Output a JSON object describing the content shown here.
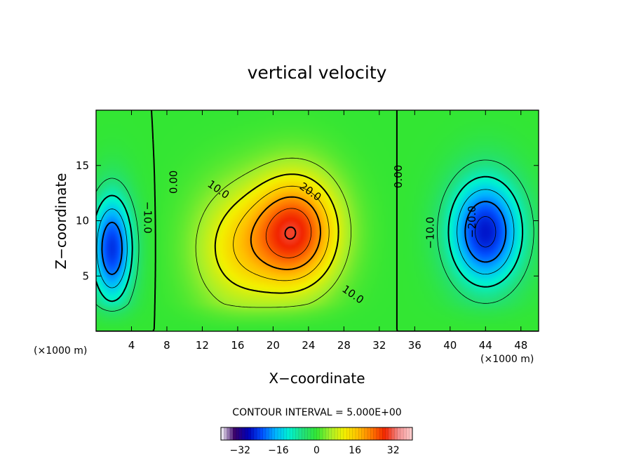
{
  "chart_data": {
    "type": "heatmap",
    "title": "vertical velocity",
    "xlabel": "X−coordinate",
    "ylabel": "Z−coordinate",
    "x_unit_label": "(×1000 m)",
    "x_unit_label_right": "(×1000 m)",
    "xlim": [
      0,
      50
    ],
    "ylim": [
      0,
      20
    ],
    "x_ticks": [
      "4",
      "8",
      "12",
      "16",
      "20",
      "24",
      "28",
      "32",
      "36",
      "40",
      "44",
      "48"
    ],
    "y_ticks": [
      "5",
      "10",
      "15"
    ],
    "contour_interval_text": "CONTOUR INTERVAL = 5.000E+00",
    "contour_interval": 5.0,
    "contour_labels": [
      {
        "text": "0.00",
        "x": 8.8,
        "z": 13.5
      },
      {
        "text": "0.00",
        "x": 34.2,
        "z": 14.0
      },
      {
        "text": "10.0",
        "x": 13.8,
        "z": 12.8
      },
      {
        "text": "10.0",
        "x": 29.0,
        "z": 3.3
      },
      {
        "text": "20.0",
        "x": 24.2,
        "z": 12.6
      },
      {
        "text": "−10.0",
        "x": 5.8,
        "z": 10.3
      },
      {
        "text": "−10.0",
        "x": 37.8,
        "z": 8.9
      },
      {
        "text": "−20.0",
        "x": 42.5,
        "z": 9.9
      }
    ],
    "features": [
      {
        "sign": "positive",
        "peak": 28,
        "x": 22.5,
        "z": 9.0,
        "sx": 4.8,
        "sz": 5.0
      },
      {
        "sign": "positive",
        "peak": 12,
        "x": 16.0,
        "z": 7.5,
        "sx": 5.0,
        "sz": 5.5
      },
      {
        "sign": "negative",
        "peak": -27,
        "x": 44.0,
        "z": 9.0,
        "sx": 4.2,
        "sz": 5.0
      },
      {
        "sign": "negative",
        "peak": -25,
        "x": 1.8,
        "z": 7.5,
        "sx": 2.4,
        "sz": 5.0
      }
    ],
    "colorbar": {
      "range": [
        -40,
        40
      ],
      "ticks": [
        {
          "value": -32,
          "label": "−32"
        },
        {
          "value": -16,
          "label": "−16"
        },
        {
          "value": 0,
          "label": "0"
        },
        {
          "value": 16,
          "label": "16"
        },
        {
          "value": 32,
          "label": "32"
        }
      ]
    },
    "colors": {
      "colormap": [
        "#ffffff",
        "#3a006a",
        "#0000b8",
        "#0050ff",
        "#00b4ff",
        "#00f2d0",
        "#22e07a",
        "#33e633",
        "#a6ef2a",
        "#f3f000",
        "#ffc000",
        "#ff7a00",
        "#f22400",
        "#f28f8f",
        "#ffd0d0"
      ]
    }
  }
}
